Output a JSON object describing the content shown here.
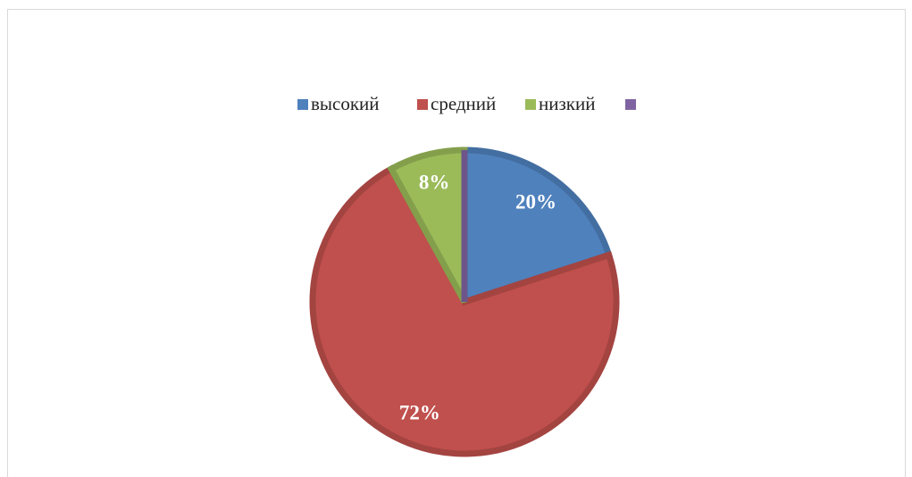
{
  "chart_data": {
    "type": "pie",
    "categories": [
      "высокий",
      "средний",
      "низкий",
      null
    ],
    "values": [
      20,
      72,
      8,
      0
    ],
    "value_labels": [
      "20%",
      "72%",
      "8%",
      null
    ],
    "colors": [
      "#4f81bd",
      "#c0504d",
      "#9bbb59",
      "#8064a2"
    ],
    "legend": "top"
  }
}
